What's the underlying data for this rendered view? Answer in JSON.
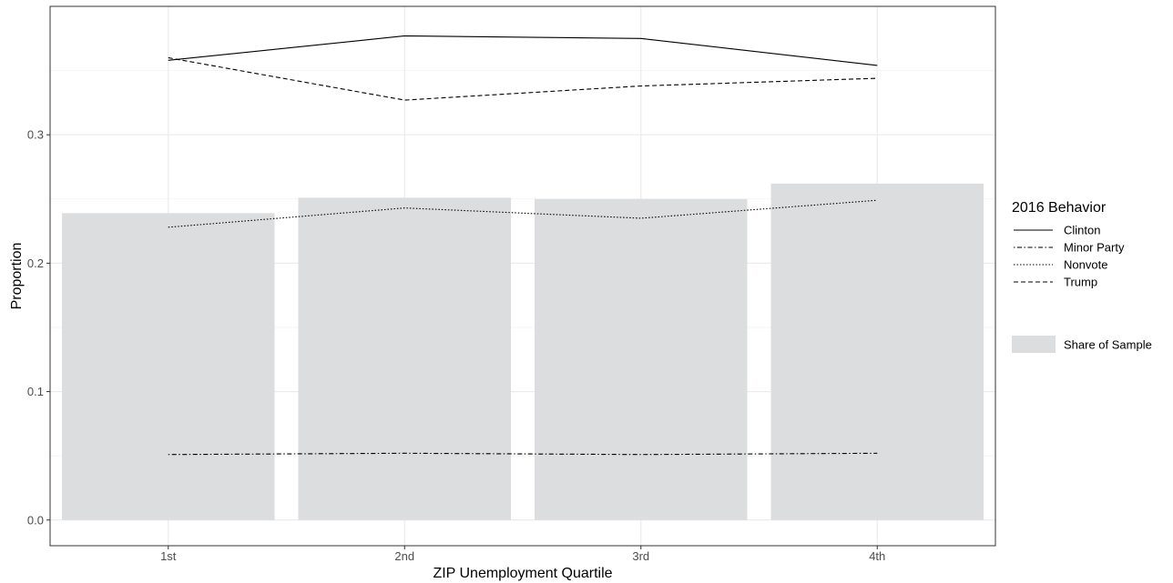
{
  "chart_data": {
    "type": "bar",
    "categories": [
      "1st",
      "2nd",
      "3rd",
      "4th"
    ],
    "bars": {
      "name": "Share of Sample",
      "values": [
        0.239,
        0.251,
        0.25,
        0.262
      ],
      "color": "#dcdddf"
    },
    "series": [
      {
        "name": "Clinton",
        "values": [
          0.358,
          0.377,
          0.375,
          0.354
        ],
        "dash": "solid"
      },
      {
        "name": "Minor Party",
        "values": [
          0.051,
          0.052,
          0.051,
          0.052
        ],
        "dash": "dotdash"
      },
      {
        "name": "Nonvote",
        "values": [
          0.228,
          0.243,
          0.235,
          0.249
        ],
        "dash": "dotted"
      },
      {
        "name": "Trump",
        "values": [
          0.36,
          0.327,
          0.338,
          0.344
        ],
        "dash": "dashed"
      }
    ],
    "xlabel": "ZIP Unemployment Quartile",
    "ylabel": "Proportion",
    "ylim": [
      -0.02,
      0.4
    ],
    "yticks": [
      0.0,
      0.1,
      0.2,
      0.3
    ],
    "ytick_labels": [
      "0.0",
      "0.1",
      "0.2",
      "0.3"
    ],
    "legend_title": "2016 Behavior",
    "legend_position": "right",
    "grid": true,
    "line_color": "#000000"
  }
}
